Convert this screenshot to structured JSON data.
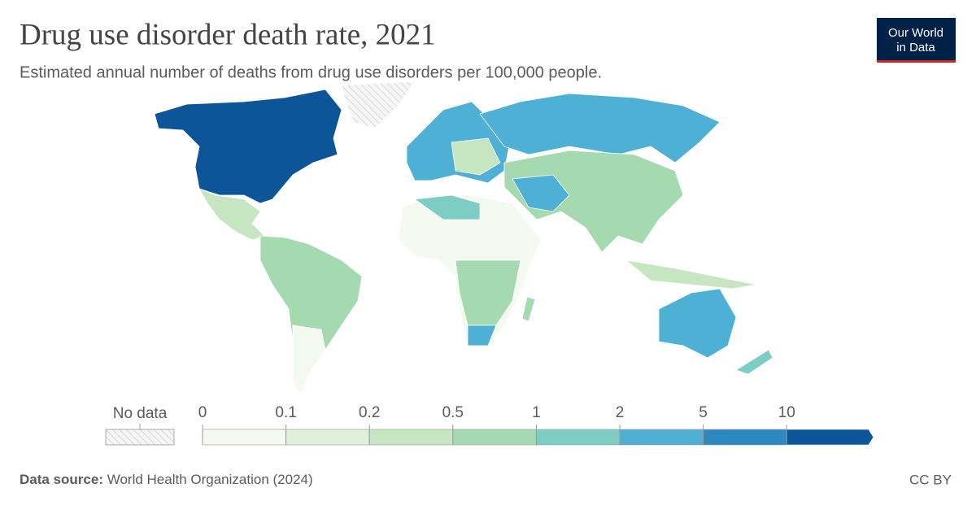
{
  "header": {
    "title": "Drug use disorder death rate, 2021",
    "subtitle": "Estimated annual number of deaths from drug use disorders per 100,000 people.",
    "logo": [
      "Our World",
      "in Data"
    ]
  },
  "legend": {
    "no_data": "No data",
    "bins": [
      0,
      0.1,
      0.2,
      0.5,
      1,
      2,
      5,
      10
    ],
    "colors": [
      "#f4faf0",
      "#dff1d9",
      "#c5e6c0",
      "#a5d9b0",
      "#7ecdc4",
      "#4db0d4",
      "#2c89c0",
      "#0b5598"
    ]
  },
  "footer": {
    "source_label": "Data source:",
    "source": "World Health Organization (2024)",
    "license": "CC BY"
  }
}
